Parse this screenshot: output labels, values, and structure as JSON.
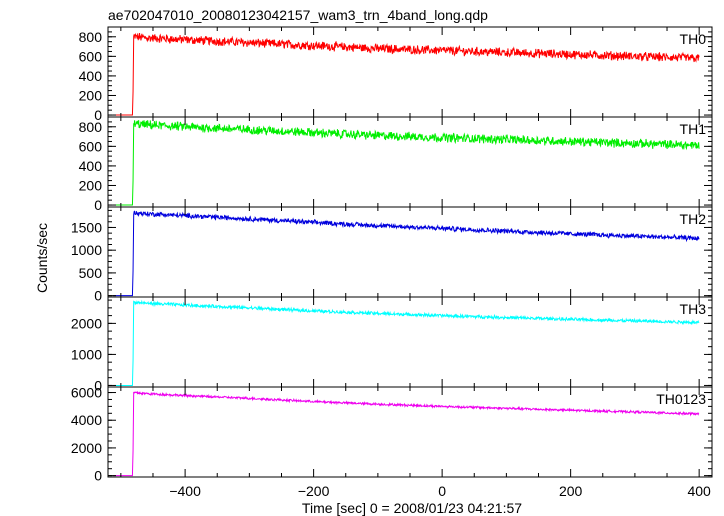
{
  "chart_data": {
    "type": "line",
    "title": "ae702047010_20080123042157_wam3_trn_4band_long.qdp",
    "xlabel": "Time [sec] 0 = 2008/01/23 04:21:57",
    "ylabel": "Counts/sec",
    "xlim": [
      -520,
      420
    ],
    "xticks": [
      -400,
      -200,
      0,
      200,
      400
    ],
    "series": [
      {
        "name": "TH0",
        "color": "#ff0000",
        "ylim": [
          -20,
          900
        ],
        "yticks": [
          0,
          200,
          400,
          600,
          800
        ],
        "pre_level": 0,
        "onset": -480,
        "x": [
          -480,
          -460,
          -400,
          -300,
          -200,
          -100,
          0,
          100,
          200,
          300,
          400
        ],
        "y": [
          800,
          790,
          770,
          740,
          710,
          680,
          660,
          640,
          620,
          600,
          580
        ],
        "noise": 40
      },
      {
        "name": "TH1",
        "color": "#00ee00",
        "ylim": [
          -20,
          900
        ],
        "yticks": [
          0,
          200,
          400,
          600,
          800
        ],
        "pre_level": 0,
        "onset": -480,
        "x": [
          -480,
          -460,
          -400,
          -300,
          -200,
          -100,
          0,
          100,
          200,
          300,
          400
        ],
        "y": [
          830,
          820,
          800,
          770,
          740,
          710,
          690,
          670,
          650,
          630,
          610
        ],
        "noise": 40
      },
      {
        "name": "TH2",
        "color": "#0000dd",
        "ylim": [
          -30,
          1950
        ],
        "yticks": [
          0,
          500,
          1000,
          1500
        ],
        "pre_level": 0,
        "onset": -480,
        "x": [
          -480,
          -460,
          -400,
          -300,
          -200,
          -100,
          0,
          100,
          200,
          300,
          400
        ],
        "y": [
          1820,
          1800,
          1760,
          1690,
          1610,
          1540,
          1480,
          1420,
          1360,
          1310,
          1260
        ],
        "noise": 45
      },
      {
        "name": "TH3",
        "color": "#00ffff",
        "ylim": [
          -50,
          2850
        ],
        "yticks": [
          0,
          1000,
          2000
        ],
        "pre_level": 0,
        "onset": -480,
        "x": [
          -480,
          -460,
          -400,
          -300,
          -200,
          -100,
          0,
          100,
          200,
          300,
          400
        ],
        "y": [
          2680,
          2650,
          2590,
          2500,
          2400,
          2320,
          2250,
          2190,
          2130,
          2080,
          2030
        ],
        "noise": 45
      },
      {
        "name": "TH0123",
        "color": "#ee00ee",
        "ylim": [
          -100,
          6400
        ],
        "yticks": [
          0,
          2000,
          4000,
          6000
        ],
        "pre_level": 0,
        "onset": -480,
        "x": [
          -480,
          -460,
          -400,
          -300,
          -200,
          -100,
          0,
          100,
          200,
          300,
          400
        ],
        "y": [
          6000,
          5920,
          5780,
          5580,
          5350,
          5160,
          5000,
          4860,
          4720,
          4600,
          4450
        ],
        "noise": 70
      }
    ]
  }
}
